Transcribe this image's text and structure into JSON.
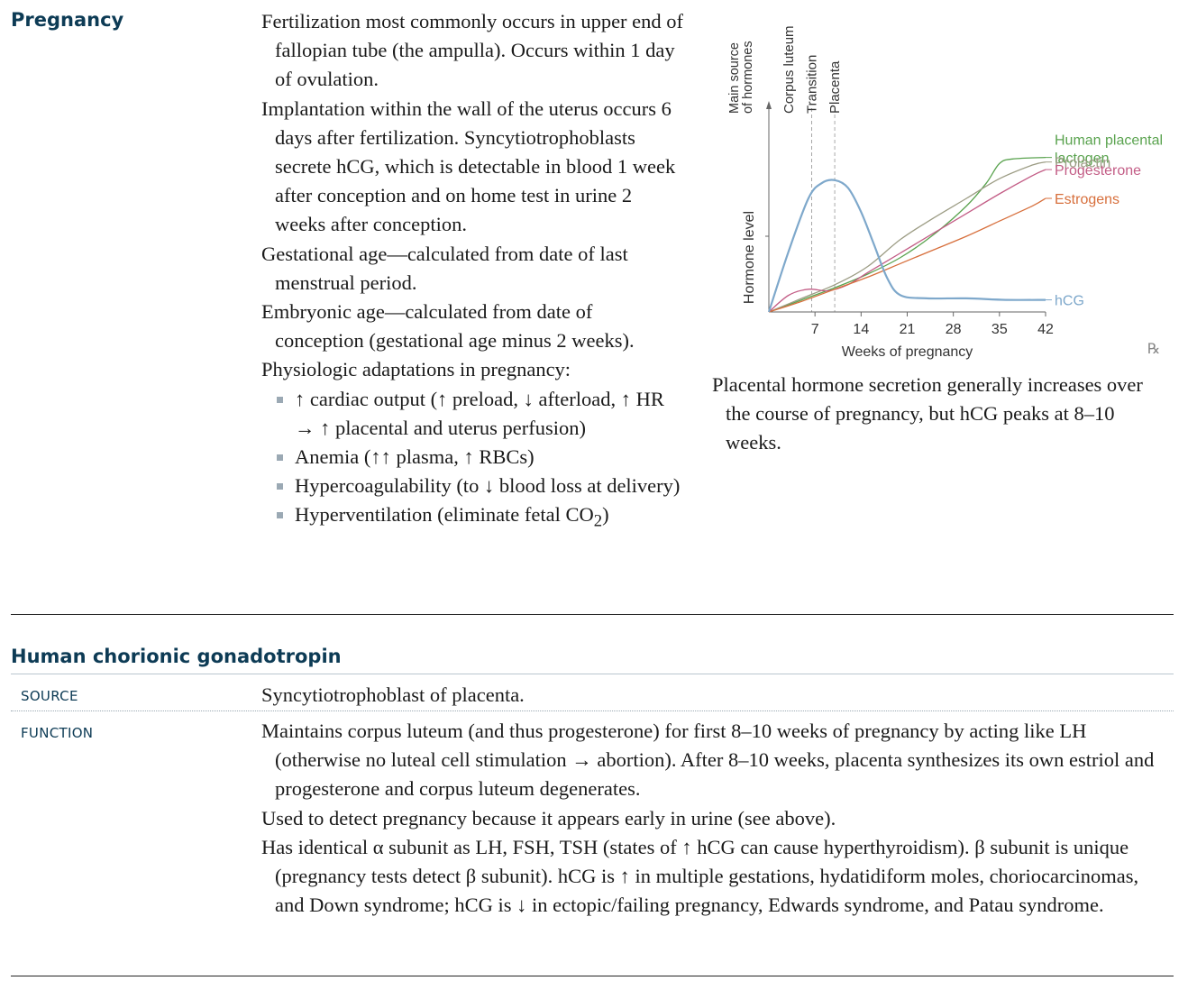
{
  "pregnancy": {
    "title": "Pregnancy",
    "paragraphs": [
      "Fertilization most commonly occurs in upper end of fallopian tube (the ampulla). Occurs within 1 day of ovulation.",
      "Implantation within the wall of the uterus occurs 6 days after fertilization. Syncytiotrophoblasts secrete hCG, which is detectable in blood 1 week after conception and on home test in urine 2 weeks after conception.",
      "Gestational age—calculated from date of last menstrual period.",
      "Embryonic age—calculated from date of conception (gestational age minus 2 weeks).",
      "Physiologic adaptations in pregnancy:"
    ],
    "adaptations": [
      "↑ cardiac output (↑ preload, ↓ afterload, ↑ HR → ↑ placental and uterus perfusion)",
      "Anemia (↑↑ plasma, ↑ RBCs)",
      "Hypercoagulability (to ↓ blood loss at delivery)"
    ],
    "hyperventilation": {
      "text": "Hyperventilation (eliminate fetal CO",
      "sub": "2",
      "tail": ")"
    },
    "caption": "Placental hormone secretion generally increases over the course of pregnancy, but hCG peaks at 8–10 weeks.",
    "rx_mark": "℞"
  },
  "chart_data": {
    "type": "line",
    "xlabel": "Weeks of pregnancy",
    "ylabel": "Hormone level",
    "xlim": [
      0,
      42
    ],
    "ylim": [
      0,
      100
    ],
    "x_ticks": [
      7,
      14,
      21,
      28,
      35,
      42
    ],
    "top_axis_label": "Main source of hormones",
    "source_phases": [
      {
        "label": "Corpus luteum",
        "week": 3
      },
      {
        "label": "Transition",
        "week": 6.5
      },
      {
        "label": "Placenta",
        "week": 10
      }
    ],
    "dashed_lines_at": [
      6.5,
      10
    ],
    "series": [
      {
        "name": "Human placental lactogen",
        "color": "#5aa34f",
        "points": [
          [
            0,
            0
          ],
          [
            5,
            8
          ],
          [
            10,
            16
          ],
          [
            15,
            25
          ],
          [
            20,
            36
          ],
          [
            25,
            51
          ],
          [
            30,
            70
          ],
          [
            33,
            85
          ],
          [
            35,
            98
          ],
          [
            37,
            101
          ],
          [
            42,
            102
          ]
        ]
      },
      {
        "name": "Prolactin",
        "color": "#9c9c84",
        "points": [
          [
            0,
            0
          ],
          [
            5,
            9
          ],
          [
            10,
            18
          ],
          [
            15,
            30
          ],
          [
            20,
            48
          ],
          [
            25,
            62
          ],
          [
            30,
            75
          ],
          [
            35,
            88
          ],
          [
            40,
            97
          ],
          [
            42,
            99
          ]
        ]
      },
      {
        "name": "Progesterone",
        "color": "#c35d86",
        "points": [
          [
            0,
            0
          ],
          [
            3,
            11
          ],
          [
            6,
            15
          ],
          [
            9,
            14
          ],
          [
            12,
            18
          ],
          [
            15,
            26
          ],
          [
            20,
            39
          ],
          [
            25,
            52
          ],
          [
            30,
            65
          ],
          [
            35,
            78
          ],
          [
            40,
            90
          ],
          [
            42,
            94
          ]
        ]
      },
      {
        "name": "Estrogens",
        "color": "#d76f3c",
        "points": [
          [
            0,
            0
          ],
          [
            5,
            7
          ],
          [
            10,
            15
          ],
          [
            15,
            23
          ],
          [
            20,
            32
          ],
          [
            25,
            41
          ],
          [
            30,
            50
          ],
          [
            35,
            60
          ],
          [
            40,
            70
          ],
          [
            42,
            75
          ]
        ]
      },
      {
        "name": "hCG",
        "color": "#7ea8cb",
        "points": [
          [
            0,
            0
          ],
          [
            3,
            40
          ],
          [
            6,
            75
          ],
          [
            8,
            85
          ],
          [
            10,
            87
          ],
          [
            12,
            82
          ],
          [
            14,
            66
          ],
          [
            16,
            44
          ],
          [
            18,
            22
          ],
          [
            20,
            11
          ],
          [
            24,
            9
          ],
          [
            30,
            9
          ],
          [
            36,
            8
          ],
          [
            42,
            8
          ]
        ]
      }
    ]
  },
  "hcg": {
    "title": "Human chorionic gonadotropin",
    "source_label": "SOURCE",
    "source_text": "Syncytiotrophoblast of placenta.",
    "function_label": "FUNCTION",
    "function_paragraphs": [
      "Maintains corpus luteum (and thus progesterone) for first 8–10 weeks of pregnancy by acting like LH (otherwise no luteal cell stimulation → abortion). After 8–10 weeks, placenta synthesizes its own estriol and progesterone and corpus luteum degenerates.",
      "Used to detect pregnancy because it appears early in urine (see above).",
      "Has identical α subunit as LH, FSH, TSH (states of ↑ hCG can cause hyperthyroidism). β subunit is unique (pregnancy tests detect β subunit). hCG is ↑ in multiple gestations, hydatidiform moles, choriocarcinomas, and Down syndrome; hCG is ↓ in ectopic/failing pregnancy, Edwards syndrome, and Patau syndrome."
    ]
  }
}
